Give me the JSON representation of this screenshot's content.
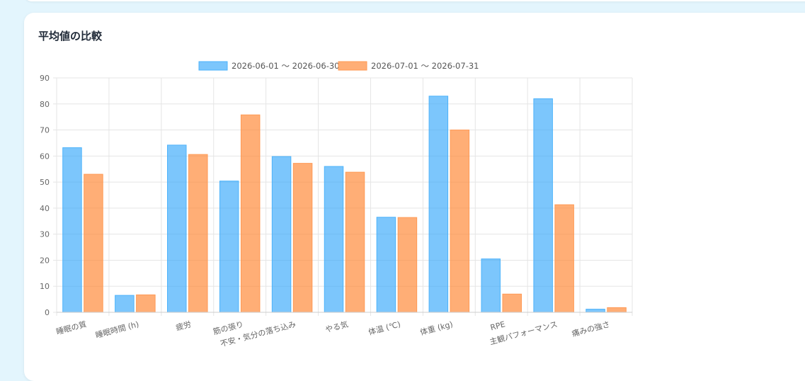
{
  "card": {
    "title": "平均値の比較"
  },
  "colors": {
    "series_a_fill": "rgba(54,168,250,0.65)",
    "series_a_stroke": "#4db3fb",
    "series_b_fill": "rgba(255,140,60,0.7)",
    "series_b_stroke": "#ff9a55",
    "grid": "#e5e5e5"
  },
  "chart_data": {
    "type": "bar",
    "title": "平均値の比較",
    "categories": [
      [
        "睡眠の質"
      ],
      [
        "睡眠時間 (h)"
      ],
      [
        "疲労"
      ],
      [
        "筋の張り"
      ],
      [
        "不安・気分の落ち込み"
      ],
      [
        "やる気"
      ],
      [
        "体温 (℃)"
      ],
      [
        "体重 (kg)"
      ],
      [
        "RPE"
      ],
      [
        "主観パフォーマンス"
      ],
      [
        "痛みの強さ"
      ]
    ],
    "series": [
      {
        "name": "2026-06-01 〜 2026-06-30",
        "values": [
          63.2,
          6.5,
          64.2,
          50.4,
          59.8,
          56.0,
          36.5,
          83.0,
          20.5,
          82.0,
          1.2
        ]
      },
      {
        "name": "2026-07-01 〜 2026-07-31",
        "values": [
          53.0,
          6.7,
          60.6,
          75.8,
          57.2,
          53.8,
          36.4,
          70.0,
          7.0,
          41.3,
          1.8
        ]
      }
    ],
    "ylim": [
      0,
      90
    ],
    "yticks": [
      0,
      10,
      20,
      30,
      40,
      50,
      60,
      70,
      80,
      90
    ],
    "grid": true,
    "legend": "top-center"
  }
}
